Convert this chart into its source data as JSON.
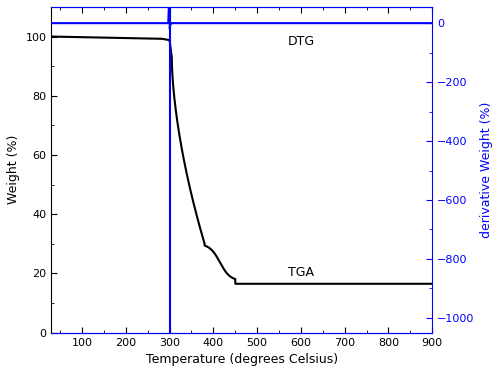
{
  "xlabel": "Temperature (degrees Celsius)",
  "ylabel_left": "Weight (%)",
  "ylabel_right": "derivative Weight (%)",
  "tga_color": "#000000",
  "dtg_color": "#0000FF",
  "xlim": [
    30,
    900
  ],
  "ylim_left": [
    0,
    110
  ],
  "ylim_right": [
    -1050,
    55
  ],
  "xticks": [
    100,
    200,
    300,
    400,
    500,
    600,
    700,
    800,
    900
  ],
  "yticks_left": [
    0,
    20,
    40,
    60,
    80,
    100
  ],
  "yticks_right": [
    0,
    -200,
    -400,
    -600,
    -800,
    -1000
  ],
  "label_tga": "TGA",
  "label_dtg": "DTG",
  "vline_x": 300,
  "vline_color": "#0000FF",
  "linewidth": 1.5
}
